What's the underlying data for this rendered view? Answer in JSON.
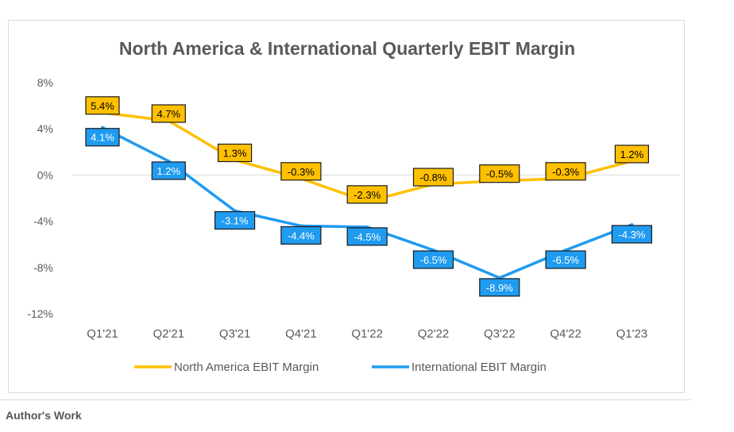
{
  "caption": "Author's Work",
  "colors": {
    "na": "#FFC000",
    "intl": "#1F9BF0",
    "grid": "#d9d9d9",
    "text": "#595959",
    "label_text_na": "#000000",
    "label_text_intl": "#ffffff"
  },
  "chart_data": {
    "type": "line",
    "title": "North America & International Quarterly EBIT Margin",
    "categories": [
      "Q1'21",
      "Q2'21",
      "Q3'21",
      "Q4'21",
      "Q1'22",
      "Q2'22",
      "Q3'22",
      "Q4'22",
      "Q1'23"
    ],
    "y_ticks": [
      8,
      4,
      0,
      -4,
      -8,
      -12
    ],
    "y_tick_labels": [
      "8%",
      "4%",
      "0%",
      "-4%",
      "-8%",
      "-12%"
    ],
    "ylim": [
      -12,
      8
    ],
    "grid": false,
    "legend_position": "bottom",
    "series": [
      {
        "name": "North America EBIT Margin",
        "values": [
          5.4,
          4.7,
          1.3,
          -0.3,
          -2.3,
          -0.8,
          -0.5,
          -0.3,
          1.2
        ],
        "labels": [
          "5.4%",
          "4.7%",
          "1.3%",
          "-0.3%",
          "-2.3%",
          "-0.8%",
          "-0.5%",
          "-0.3%",
          "1.2%"
        ]
      },
      {
        "name": "International EBIT Margin",
        "values": [
          4.1,
          1.2,
          -3.1,
          -4.4,
          -4.5,
          -6.5,
          -8.9,
          -6.5,
          -4.3
        ],
        "labels": [
          "4.1%",
          "1.2%",
          "-3.1%",
          "-4.4%",
          "-4.5%",
          "-6.5%",
          "-8.9%",
          "-6.5%",
          "-4.3%"
        ]
      }
    ]
  }
}
